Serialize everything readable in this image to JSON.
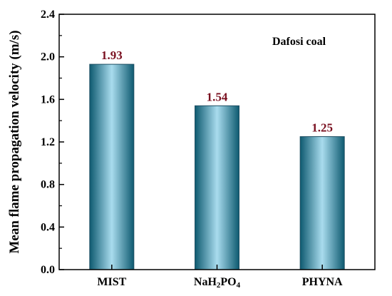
{
  "chart_data": {
    "type": "bar",
    "categories": [
      {
        "base": "MIST",
        "parts": [
          {
            "t": "MIST",
            "sub": false
          }
        ]
      },
      {
        "base": "NaH2PO4",
        "parts": [
          {
            "t": "NaH",
            "sub": false
          },
          {
            "t": "2",
            "sub": true
          },
          {
            "t": "PO",
            "sub": false
          },
          {
            "t": "4",
            "sub": true
          }
        ]
      },
      {
        "base": "PHYNA",
        "parts": [
          {
            "t": "PHYNA",
            "sub": false
          }
        ]
      }
    ],
    "values": [
      1.93,
      1.54,
      1.25
    ],
    "data_labels": [
      "1.93",
      "1.54",
      "1.25"
    ],
    "title": "",
    "xlabel": "",
    "ylabel": "Mean flame propagation velocity (m/s)",
    "ylim": [
      0,
      2.4
    ],
    "yticks": [
      "0.0",
      "0.4",
      "0.8",
      "1.2",
      "1.6",
      "2.0",
      "2.4"
    ],
    "annotation": "Dafosi coal",
    "grid": false,
    "colors": {
      "bar_edge": "#0e5a70",
      "bar_center": "#a9dcee",
      "bar_outline": "#1f4f63",
      "data_label": "#7a1020",
      "axis": "#000000"
    }
  }
}
